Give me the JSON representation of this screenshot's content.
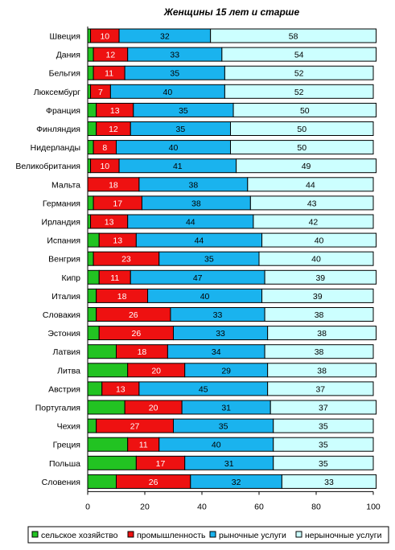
{
  "chart_data": {
    "type": "bar",
    "orientation": "horizontal",
    "stacked": true,
    "title": "Женщины 15 лет и старше",
    "categories": [
      "Швеция",
      "Дания",
      "Бельгия",
      "Люксембург",
      "Франция",
      "Финляндия",
      "Нидерланды",
      "Великобритания",
      "Мальта",
      "Германия",
      "Ирландия",
      "Испания",
      "Венгрия",
      "Кипр",
      "Италия",
      "Словакия",
      "Эстония",
      "Латвия",
      "Литва",
      "Австрия",
      "Португалия",
      "Чехия",
      "Греция",
      "Польша",
      "Словения"
    ],
    "series": [
      {
        "name": "сельское хозяйство",
        "color": "#22c322",
        "values": [
          1,
          2,
          2,
          1,
          3,
          3,
          2,
          1,
          0,
          2,
          1,
          4,
          2,
          4,
          3,
          3,
          4,
          10,
          14,
          5,
          13,
          3,
          14,
          17,
          10
        ]
      },
      {
        "name": "промышленность",
        "color": "#ee1111",
        "values": [
          10,
          12,
          11,
          7,
          13,
          12,
          8,
          10,
          18,
          17,
          13,
          13,
          23,
          11,
          18,
          26,
          26,
          18,
          20,
          13,
          20,
          27,
          11,
          17,
          26
        ]
      },
      {
        "name": "рыночные услуги",
        "color": "#1ab3ee",
        "values": [
          32,
          33,
          35,
          40,
          35,
          35,
          40,
          41,
          38,
          38,
          44,
          44,
          35,
          47,
          40,
          33,
          33,
          34,
          29,
          45,
          31,
          35,
          40,
          31,
          32
        ]
      },
      {
        "name": "нерыночные услуги",
        "color": "#ccffff",
        "values": [
          58,
          54,
          52,
          52,
          50,
          50,
          50,
          49,
          44,
          43,
          42,
          40,
          40,
          39,
          39,
          38,
          38,
          38,
          38,
          37,
          37,
          35,
          35,
          35,
          33
        ]
      }
    ],
    "data_labels": {
      "сельское хозяйство": [
        "",
        "",
        "",
        "",
        "",
        "",
        "",
        "",
        "",
        "",
        "",
        "",
        "",
        "",
        "",
        "",
        "",
        "",
        "",
        "",
        "",
        "",
        "",
        "",
        ""
      ],
      "промышленность": [
        "10",
        "12",
        "11",
        "7",
        "13",
        "12",
        "8",
        "10",
        "18",
        "17",
        "13",
        "13",
        "23",
        "11",
        "18",
        "26",
        "26",
        "18",
        "20",
        "13",
        "20",
        "27",
        "11",
        "17",
        "26"
      ],
      "рыночные услуги": [
        "32",
        "33",
        "35",
        "40",
        "35",
        "35",
        "40",
        "41",
        "38",
        "38",
        "44",
        "44",
        "35",
        "47",
        "40",
        "33",
        "33",
        "34",
        "29",
        "45",
        "31",
        "35",
        "40",
        "31",
        "32"
      ],
      "нерыночные услуги": [
        "58",
        "54",
        "52",
        "52",
        "50",
        "50",
        "50",
        "49",
        "44",
        "43",
        "42",
        "40",
        "40",
        "39",
        "39",
        "38",
        "38",
        "38",
        "38",
        "37",
        "37",
        "35",
        "35",
        "35",
        "33"
      ]
    },
    "xlim": [
      0,
      100
    ],
    "xticks": [
      "0",
      "20",
      "40",
      "60",
      "80",
      "100"
    ],
    "xlabel": "",
    "ylabel": "",
    "grid": false,
    "legend_position": "bottom"
  }
}
